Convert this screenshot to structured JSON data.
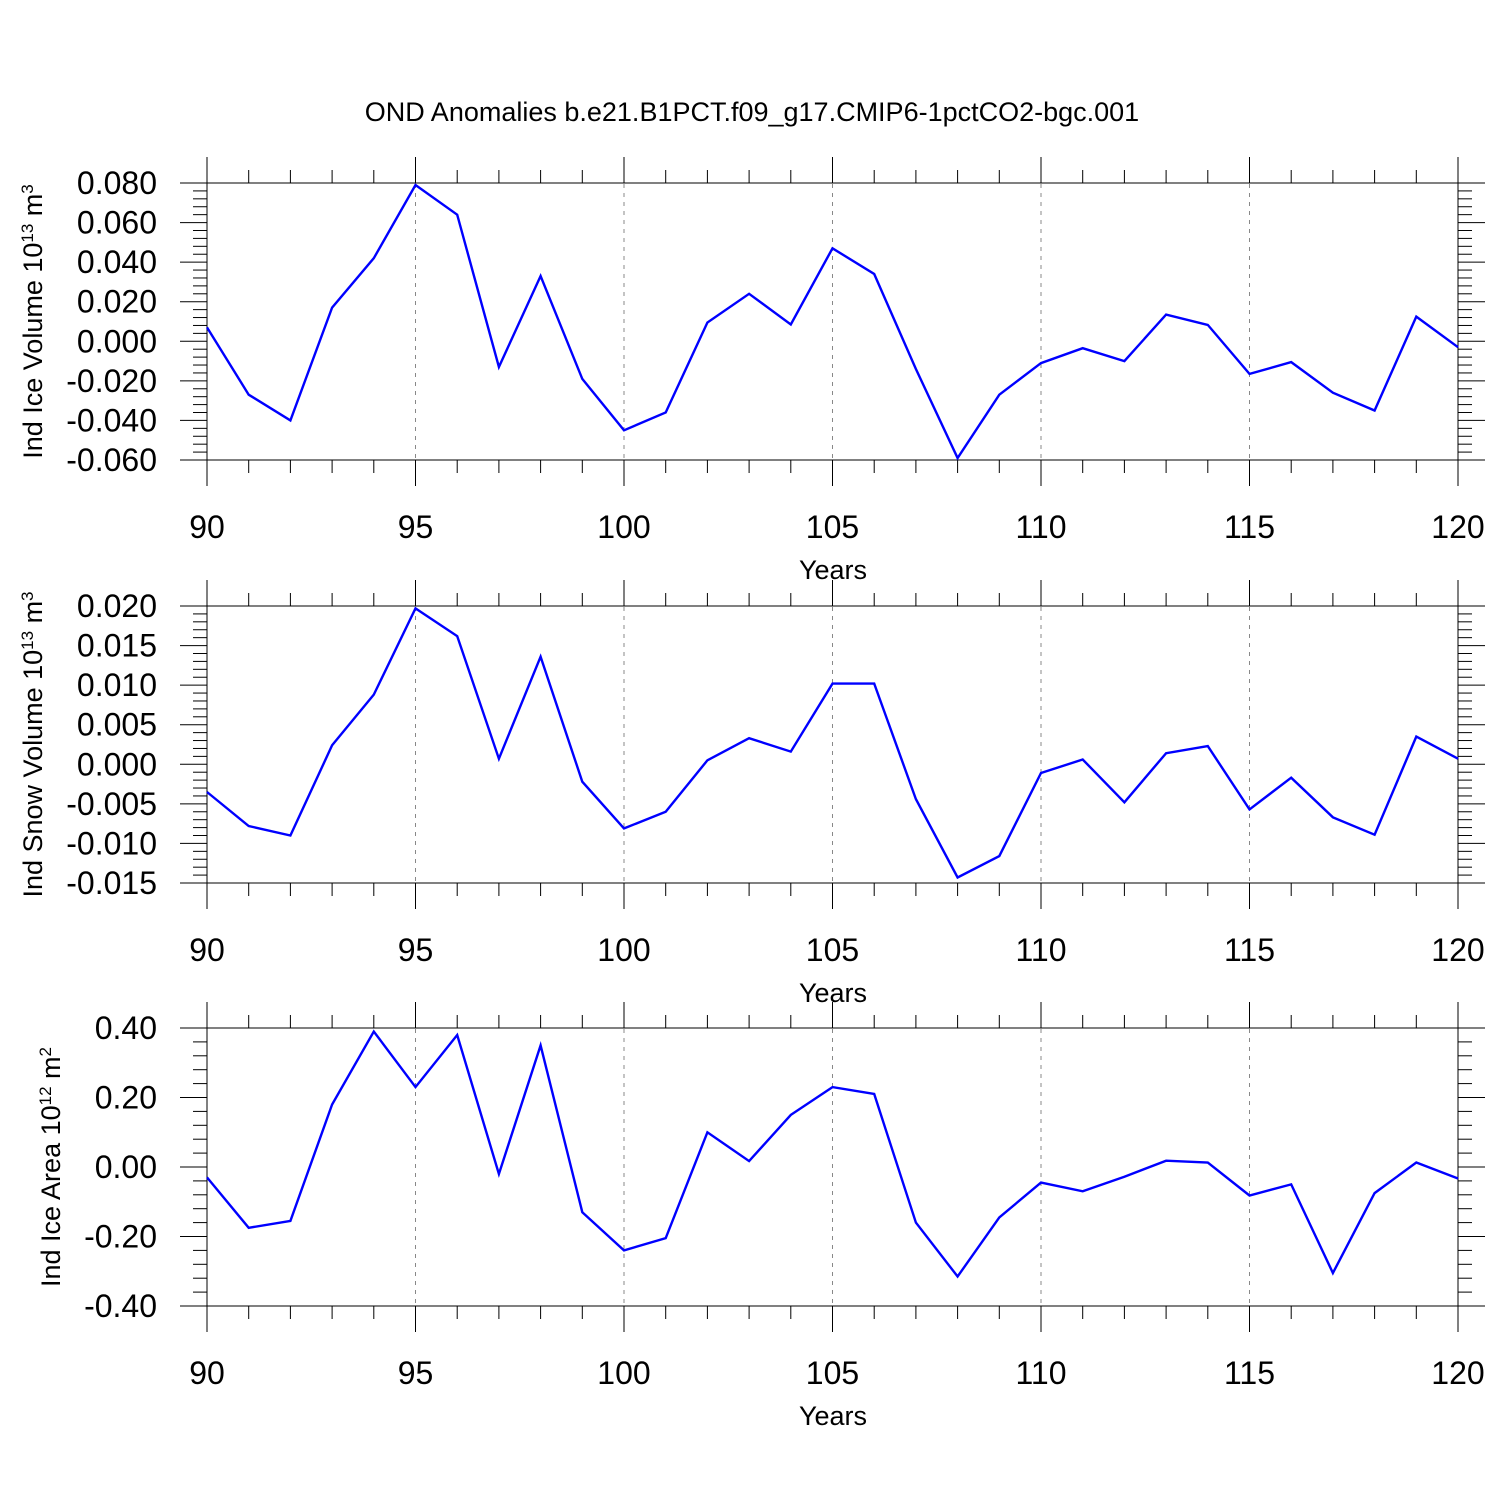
{
  "title": "OND Anomalies b.e21.B1PCT.f09_g17.CMIP6-1pctCO2-bgc.001",
  "colors": {
    "series": "#0000ff",
    "grid": "#888888",
    "axes": "#000000"
  },
  "chart_data": [
    {
      "type": "line",
      "ylabel_main": "Ind Ice Volume 10",
      "ylabel_exp": "13",
      "ylabel_unit": " m",
      "ylabel_unit_exp": "3",
      "xlabel": "Years",
      "xlim": [
        90,
        120
      ],
      "ylim": [
        -0.06,
        0.08
      ],
      "xticks": [
        90,
        95,
        100,
        105,
        110,
        115,
        120
      ],
      "xtick_labels": [
        "90",
        "95",
        "100",
        "105",
        "110",
        "115",
        "120"
      ],
      "yticks": [
        -0.06,
        -0.04,
        -0.02,
        0,
        0.02,
        0.04,
        0.06,
        0.08
      ],
      "ytick_labels": [
        "-0.060",
        "-0.040",
        "-0.020",
        "0.000",
        "0.020",
        "0.040",
        "0.060",
        "0.080"
      ],
      "grid": "vertical dashed at x ticks",
      "x": [
        90,
        91,
        92,
        93,
        94,
        95,
        96,
        97,
        98,
        99,
        100,
        101,
        102,
        103,
        104,
        105,
        106,
        107,
        108,
        109,
        110,
        111,
        112,
        113,
        114,
        115,
        116,
        117,
        118,
        119,
        120
      ],
      "values": [
        0.007,
        -0.027,
        -0.04,
        0.017,
        0.042,
        0.079,
        0.064,
        -0.013,
        0.033,
        -0.019,
        -0.045,
        -0.036,
        0.0095,
        0.024,
        0.0085,
        0.047,
        0.034,
        -0.014,
        -0.059,
        -0.027,
        -0.011,
        -0.0035,
        -0.01,
        0.0135,
        0.0083,
        -0.0165,
        -0.0105,
        -0.026,
        -0.035,
        0.0125,
        -0.003
      ]
    },
    {
      "type": "line",
      "ylabel_main": "Ind Snow Volume 10",
      "ylabel_exp": "13",
      "ylabel_unit": " m",
      "ylabel_unit_exp": "3",
      "xlabel": "Years",
      "xlim": [
        90,
        120
      ],
      "ylim": [
        -0.015,
        0.02
      ],
      "xticks": [
        90,
        95,
        100,
        105,
        110,
        115,
        120
      ],
      "xtick_labels": [
        "90",
        "95",
        "100",
        "105",
        "110",
        "115",
        "120"
      ],
      "yticks": [
        -0.015,
        -0.01,
        -0.005,
        0,
        0.005,
        0.01,
        0.015,
        0.02
      ],
      "ytick_labels": [
        "-0.015",
        "-0.010",
        "-0.005",
        "0.000",
        "0.005",
        "0.010",
        "0.015",
        "0.020"
      ],
      "grid": "vertical dashed at x ticks",
      "x": [
        90,
        91,
        92,
        93,
        94,
        95,
        96,
        97,
        98,
        99,
        100,
        101,
        102,
        103,
        104,
        105,
        106,
        107,
        108,
        109,
        110,
        111,
        112,
        113,
        114,
        115,
        116,
        117,
        118,
        119,
        120
      ],
      "values": [
        -0.0035,
        -0.0078,
        -0.009,
        0.0024,
        0.0088,
        0.0197,
        0.0162,
        0.0007,
        0.0136,
        -0.0022,
        -0.0081,
        -0.006,
        0.0005,
        0.0033,
        0.0016,
        0.0102,
        0.0102,
        -0.0044,
        -0.0143,
        -0.0116,
        -0.0011,
        0.0006,
        -0.0048,
        0.0014,
        0.0023,
        -0.0057,
        -0.0017,
        -0.0067,
        -0.0089,
        0.0035,
        0.0007
      ]
    },
    {
      "type": "line",
      "ylabel_main": "Ind Ice Area 10",
      "ylabel_exp": "12",
      "ylabel_unit": " m",
      "ylabel_unit_exp": "2",
      "xlabel": "Years",
      "xlim": [
        90,
        120
      ],
      "ylim": [
        -0.4,
        0.4
      ],
      "xticks": [
        90,
        95,
        100,
        105,
        110,
        115,
        120
      ],
      "xtick_labels": [
        "90",
        "95",
        "100",
        "105",
        "110",
        "115",
        "120"
      ],
      "yticks": [
        -0.4,
        -0.2,
        0,
        0.2,
        0.4
      ],
      "ytick_labels": [
        "-0.40",
        "-0.20",
        "0.00",
        "0.20",
        "0.40"
      ],
      "grid": "vertical dashed at x ticks",
      "x": [
        90,
        91,
        92,
        93,
        94,
        95,
        96,
        97,
        98,
        99,
        100,
        101,
        102,
        103,
        104,
        105,
        106,
        107,
        108,
        109,
        110,
        111,
        112,
        113,
        114,
        115,
        116,
        117,
        118,
        119,
        120
      ],
      "values": [
        -0.03,
        -0.175,
        -0.155,
        0.18,
        0.39,
        0.23,
        0.38,
        -0.02,
        0.35,
        -0.13,
        -0.24,
        -0.205,
        0.1,
        0.017,
        0.15,
        0.23,
        0.21,
        -0.16,
        -0.315,
        -0.145,
        -0.045,
        -0.07,
        -0.028,
        0.018,
        0.013,
        -0.082,
        -0.05,
        -0.305,
        -0.075,
        0.013,
        -0.033
      ]
    }
  ]
}
